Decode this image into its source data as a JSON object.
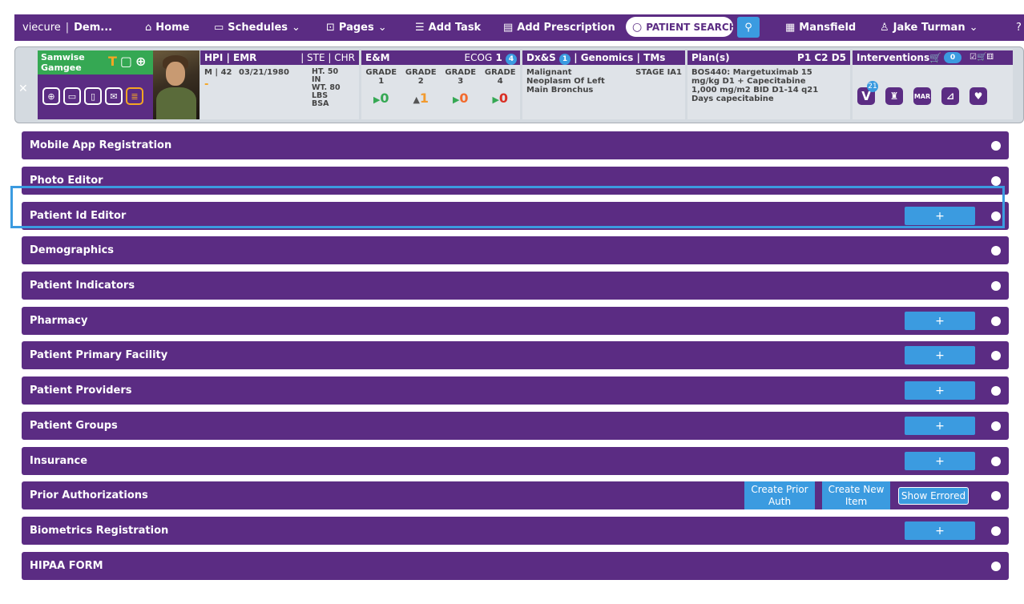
{
  "nav": {
    "brand": "viecure",
    "org": "Dem...",
    "home": "Home",
    "schedules": "Schedules",
    "pages": "Pages",
    "add_task": "Add Task",
    "add_prescription": "Add Prescription",
    "search_placeholder": "PATIENT SEARCH",
    "location": "Mansfield",
    "user": "Jake Turman"
  },
  "patient": {
    "name_line1": "Samwise",
    "name_line2": "Gamgee",
    "top_icon_letter": "T"
  },
  "hpi": {
    "title": "HPI | EMR",
    "tabs": "| STE | CHR",
    "sex_age": "M | 42",
    "dob": "03/21/1980",
    "ht": "HT. 50",
    "ht_unit": "IN",
    "wt": "WT. 80",
    "wt_unit": "LBS",
    "bsa": "BSA",
    "dash": "-"
  },
  "em": {
    "title": "E&M",
    "ecog_label": "ECOG",
    "ecog_value": "1",
    "ecog_badge": "4",
    "grades": [
      {
        "label": "GRADE",
        "num": "1",
        "value": "0",
        "arrow": "▶",
        "color": "#35a853"
      },
      {
        "label": "GRADE",
        "num": "2",
        "value": "1",
        "arrow": "▲",
        "color": "#f29a2e"
      },
      {
        "label": "GRADE",
        "num": "3",
        "value": "0",
        "arrow": "▶",
        "color": "#f26b2e"
      },
      {
        "label": "GRADE",
        "num": "4",
        "value": "0",
        "arrow": "▶",
        "color": "#d93025"
      }
    ]
  },
  "dx": {
    "title_a": "Dx&S",
    "badge": "1",
    "title_b": "| Genomics | TMs",
    "diagnosis": "Malignant Neoplasm Of Left Main Bronchus",
    "stage": "STAGE IA1"
  },
  "plan": {
    "title": "Plan(s)",
    "cycle": "P1 C2 D5",
    "text": "BOS440: Margetuximab 15 mg/kg D1 + Capecitabine 1,000 mg/m2 BID D1-14 q21 Days capecitabine"
  },
  "interventions": {
    "title": "Interventions",
    "count": "0",
    "v_badge": "21"
  },
  "rows": [
    {
      "label": "Mobile App Registration"
    },
    {
      "label": "Photo Editor"
    },
    {
      "label": "Patient Id Editor",
      "plus": "+"
    },
    {
      "label": "Demographics"
    },
    {
      "label": "Patient Indicators"
    },
    {
      "label": "Pharmacy",
      "plus": "+"
    },
    {
      "label": "Patient Primary Facility",
      "plus": "+"
    },
    {
      "label": "Patient Providers",
      "plus": "+"
    },
    {
      "label": "Patient Groups",
      "plus": "+"
    },
    {
      "label": "Insurance",
      "plus": "+"
    },
    {
      "label": "Prior Authorizations",
      "btn1": "Create Prior Auth",
      "btn2": "Create New Item",
      "btn3": "Show Errored"
    },
    {
      "label": "Biometrics Registration",
      "plus": "+"
    },
    {
      "label": "HIPAA FORM"
    }
  ],
  "colors": {
    "accent": "#5b2c83",
    "button": "#3b9be0",
    "highlight": "#3b9be0",
    "green": "#35a853"
  }
}
